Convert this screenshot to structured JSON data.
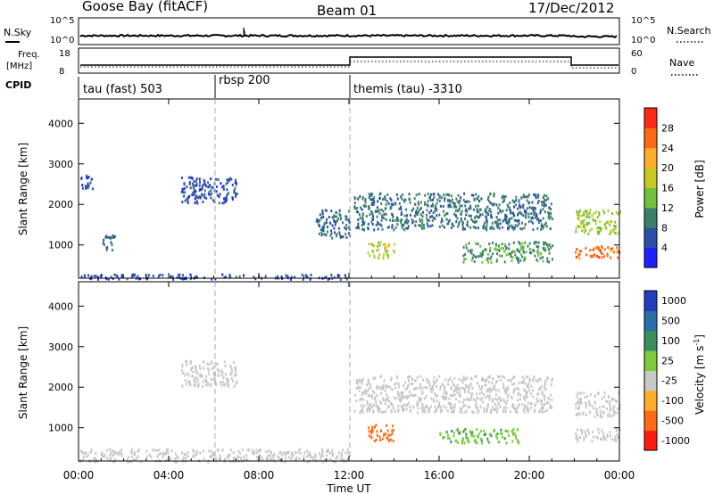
{
  "header": {
    "station": "Goose Bay (fitACF)",
    "beam": "Beam 01",
    "date": "17/Dec/2012"
  },
  "noise_panel": {
    "left_label": "N.Sky",
    "left_ticks": [
      "10^5",
      "10^0"
    ],
    "right_label": "N.Search",
    "right_ticks": [
      "10^5",
      "10^0"
    ]
  },
  "freq_panel": {
    "left_label_1": "Freq.",
    "left_label_2": "[MHz]",
    "left_ticks": [
      "18",
      "8"
    ],
    "right_label": "Nave",
    "right_ticks": [
      "60",
      "0"
    ]
  },
  "cpid_panel": {
    "label": "CPID",
    "segments": [
      {
        "label": "tau (fast) 503",
        "start_hour": 0
      },
      {
        "label": "rbsp 200",
        "start_hour": 6
      },
      {
        "label": "themis (tau) -3310",
        "start_hour": 12
      }
    ]
  },
  "power_panel": {
    "ylabel": "Slant Range [km]",
    "yticks": [
      "1000",
      "2000",
      "3000",
      "4000"
    ],
    "colorbar_label": "Power [dB]",
    "colorbar_ticks": [
      "4",
      "8",
      "12",
      "16",
      "20",
      "24",
      "28"
    ],
    "colors": [
      "#1f1fff",
      "#2b4fa8",
      "#3a7f6a",
      "#6fc23a",
      "#c8c81e",
      "#ffae2a",
      "#ff6a14",
      "#ff2a14"
    ]
  },
  "velocity_panel": {
    "ylabel": "Slant Range [km]",
    "yticks": [
      "1000",
      "2000",
      "3000",
      "4000"
    ],
    "colorbar_label": "Velocity [m s",
    "colorbar_label_exp": "-1",
    "colorbar_ticks": [
      "1000",
      "500",
      "100",
      "25",
      "-25",
      "-100",
      "-500",
      "-1000"
    ],
    "colors": [
      "#1f3fbf",
      "#2b6fa8",
      "#3a8f5a",
      "#7acc3a",
      "#c8c8c8",
      "#ffae2a",
      "#ff6a14",
      "#ff1a10"
    ]
  },
  "x_axis": {
    "label": "Time UT",
    "ticks": [
      "00:00",
      "04:00",
      "08:00",
      "12:00",
      "16:00",
      "20:00",
      "00:00"
    ]
  },
  "chart_data": [
    {
      "type": "heatmap",
      "title": "Power",
      "xlabel": "Time UT",
      "ylabel": "Slant Range [km]",
      "xlim": [
        0,
        24
      ],
      "ylim": [
        180,
        4600
      ],
      "zlabel": "Power [dB]",
      "zlim": [
        0,
        30
      ],
      "regions": [
        {
          "t": [
            0,
            12
          ],
          "range": [
            180,
            300
          ],
          "power": 6
        },
        {
          "t": [
            0,
            0.6
          ],
          "range": [
            2400,
            2750
          ],
          "power": 5
        },
        {
          "t": [
            1,
            1.6
          ],
          "range": [
            900,
            1300
          ],
          "power": 8
        },
        {
          "t": [
            4.5,
            7
          ],
          "range": [
            2050,
            2700
          ],
          "power": 6
        },
        {
          "t": [
            10.5,
            12
          ],
          "range": [
            1200,
            1900
          ],
          "power": 8
        },
        {
          "t": [
            12.2,
            21
          ],
          "range": [
            1400,
            2300
          ],
          "power": 9
        },
        {
          "t": [
            12.8,
            14
          ],
          "range": [
            700,
            1100
          ],
          "power": 18
        },
        {
          "t": [
            17,
            21
          ],
          "range": [
            600,
            1100
          ],
          "power": 11
        },
        {
          "t": [
            22,
            24
          ],
          "range": [
            700,
            1000
          ],
          "power": 26
        },
        {
          "t": [
            22,
            24
          ],
          "range": [
            1300,
            1900
          ],
          "power": 16
        }
      ]
    },
    {
      "type": "heatmap",
      "title": "Velocity",
      "xlabel": "Time UT",
      "ylabel": "Slant Range [km]",
      "xlim": [
        0,
        24
      ],
      "ylim": [
        180,
        4600
      ],
      "zlabel": "Velocity [m s-1]",
      "zlim": [
        -1000,
        1000
      ],
      "regions": [
        {
          "t": [
            0,
            12
          ],
          "range": [
            180,
            500
          ],
          "velocity": 0
        },
        {
          "t": [
            4.5,
            7
          ],
          "range": [
            2050,
            2700
          ],
          "velocity": 0
        },
        {
          "t": [
            12.2,
            21
          ],
          "range": [
            1400,
            2300
          ],
          "velocity": 0
        },
        {
          "t": [
            12.8,
            14
          ],
          "range": [
            700,
            1100
          ],
          "velocity": -200
        },
        {
          "t": [
            16,
            19.5
          ],
          "range": [
            650,
            1000
          ],
          "velocity": 90
        },
        {
          "t": [
            22,
            24
          ],
          "range": [
            700,
            1000
          ],
          "velocity": 0
        },
        {
          "t": [
            22,
            24
          ],
          "range": [
            1300,
            1900
          ],
          "velocity": 0
        }
      ]
    }
  ]
}
